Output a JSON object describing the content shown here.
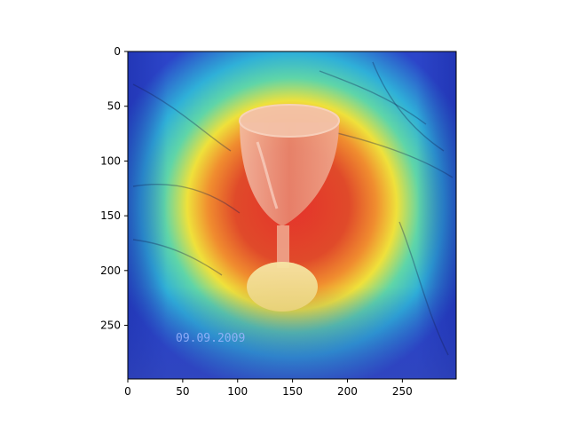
{
  "image": {
    "description_type": "heatmap-overlay",
    "overlay_colormap": "jet",
    "date_stamp": "09.09.2009"
  },
  "axes": {
    "x_ticks": [
      "0",
      "50",
      "100",
      "150",
      "200",
      "250"
    ],
    "y_ticks": [
      "0",
      "50",
      "100",
      "150",
      "200",
      "250"
    ],
    "x_range": [
      0,
      299
    ],
    "y_range": [
      0,
      299
    ]
  },
  "colors": {
    "hot": "#e8322a",
    "warm": "#f2e23a",
    "mid": "#37c7c0",
    "cool": "#3a56d6",
    "cold": "#1c2aa8"
  }
}
